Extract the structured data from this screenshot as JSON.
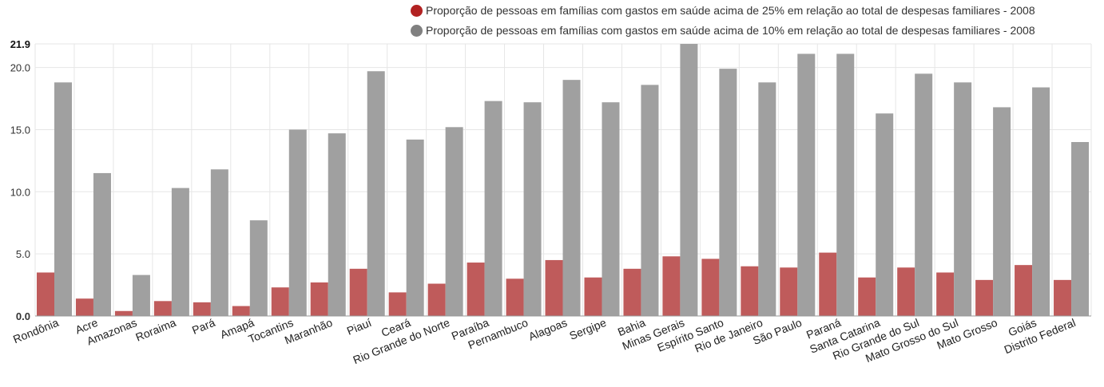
{
  "chart_data": {
    "type": "bar",
    "categories": [
      "Rondônia",
      "Acre",
      "Amazonas",
      "Roraima",
      "Pará",
      "Amapá",
      "Tocantins",
      "Maranhão",
      "Piauí",
      "Ceará",
      "Rio Grande do Norte",
      "Paraíba",
      "Pernambuco",
      "Alagoas",
      "Sergipe",
      "Bahia",
      "Minas Gerais",
      "Espírito Santo",
      "Rio de Janeiro",
      "São Paulo",
      "Paraná",
      "Santa Catarina",
      "Rio Grande do Sul",
      "Mato Grosso do Sul",
      "Mato Grosso",
      "Goiás",
      "Distrito Federal"
    ],
    "series": [
      {
        "name": "Proporção de pessoas em famílias com gastos em saúde acima de 25% em relação ao total de despesas familiares - 2008",
        "color": "#bf5b5b",
        "legend_color": "#b22222",
        "values": [
          3.5,
          1.4,
          0.4,
          1.2,
          1.1,
          0.8,
          2.3,
          2.7,
          3.8,
          1.9,
          2.6,
          4.3,
          3.0,
          4.5,
          3.1,
          3.8,
          4.8,
          4.6,
          4.0,
          3.9,
          5.1,
          3.1,
          3.9,
          3.5,
          2.9,
          4.1,
          2.9
        ]
      },
      {
        "name": "Proporção de pessoas em famílias com gastos em saúde acima de 10% em relação ao total de despesas familiares - 2008",
        "color": "#a0a0a0",
        "legend_color": "#808080",
        "values": [
          18.8,
          11.5,
          3.3,
          10.3,
          11.8,
          7.7,
          15.0,
          14.7,
          19.7,
          14.2,
          15.2,
          17.3,
          17.2,
          19.0,
          17.2,
          18.6,
          21.9,
          19.9,
          18.8,
          21.1,
          21.1,
          16.3,
          19.5,
          18.8,
          16.8,
          18.4,
          14.0
        ]
      }
    ],
    "y_ticks": [
      "0.0",
      "5.0",
      "10.0",
      "15.0",
      "20.0"
    ],
    "y_max_label": "21.9",
    "ylim": [
      0,
      21.9
    ],
    "grid": true,
    "legend_position": "top-right"
  }
}
